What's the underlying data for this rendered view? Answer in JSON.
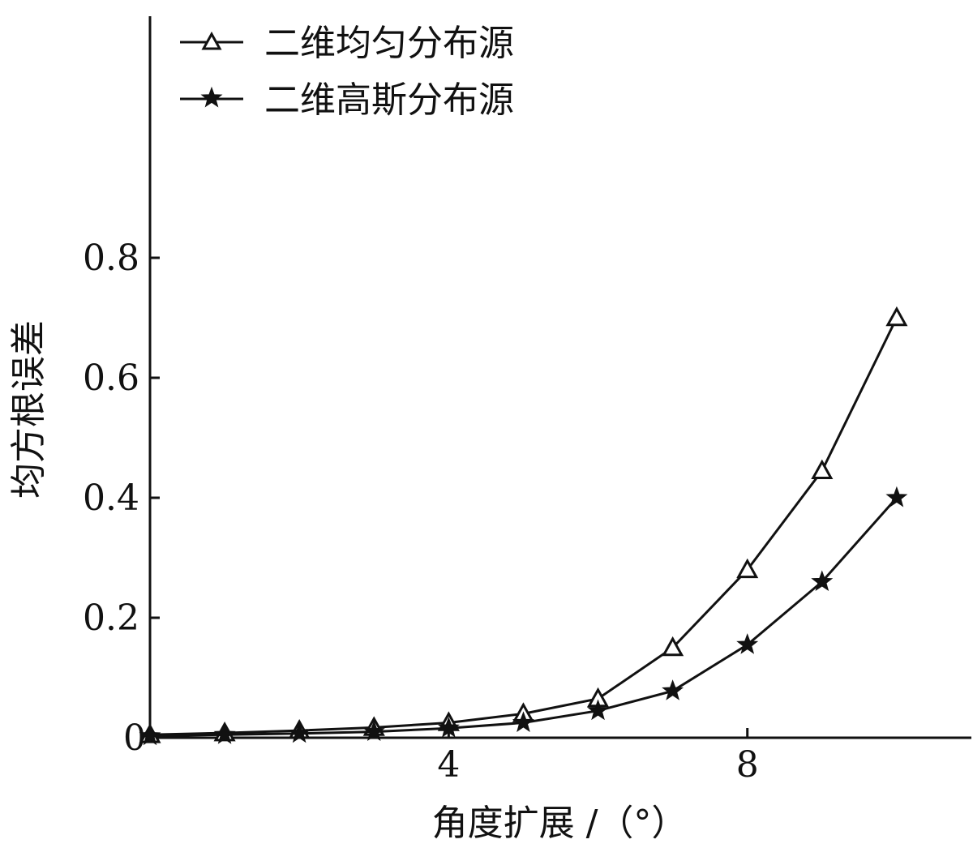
{
  "chart_data": {
    "type": "line",
    "title": "",
    "xlabel": "角度扩展 /（°）",
    "ylabel": "均方根误差",
    "xlim": [
      0,
      11
    ],
    "ylim": [
      0,
      1.0
    ],
    "xticks": [
      4,
      8
    ],
    "xtick_labels": [
      "4",
      "8"
    ],
    "yticks": [
      0,
      0.2,
      0.4,
      0.6,
      0.8
    ],
    "ytick_labels": [
      "0",
      "0.2",
      "0.4",
      "0.6",
      "0.8"
    ],
    "grid": false,
    "legend_position": "top-left",
    "x": [
      0,
      1,
      2,
      3,
      4,
      5,
      6,
      7,
      8,
      9,
      10
    ],
    "series": [
      {
        "name": "二维均匀分布源",
        "marker": "triangle",
        "color": "#111111",
        "values": [
          0.005,
          0.008,
          0.012,
          0.017,
          0.025,
          0.04,
          0.065,
          0.15,
          0.28,
          0.445,
          0.7
        ]
      },
      {
        "name": "二维高斯分布源",
        "marker": "star",
        "color": "#111111",
        "values": [
          0.003,
          0.005,
          0.007,
          0.01,
          0.016,
          0.025,
          0.045,
          0.078,
          0.155,
          0.26,
          0.4
        ]
      }
    ]
  }
}
